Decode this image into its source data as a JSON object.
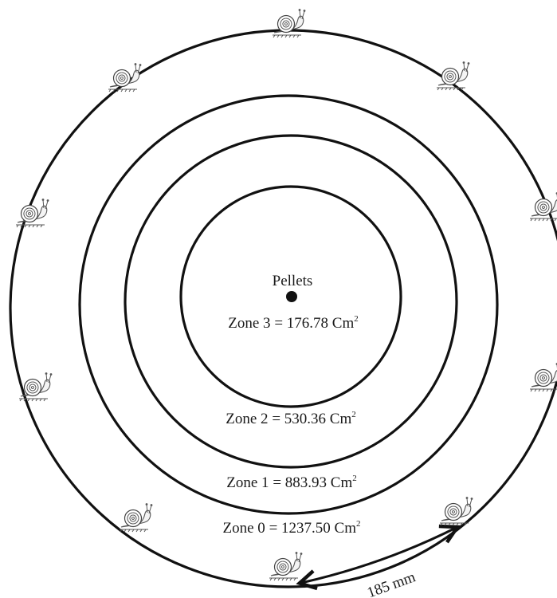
{
  "diagram": {
    "center_label": "Pellets",
    "zones": [
      {
        "name": "Zone 3",
        "area": "176.78",
        "unit": "Cm",
        "sup": "2"
      },
      {
        "name": "Zone 2",
        "area": "530.36",
        "unit": "Cm",
        "sup": "2"
      },
      {
        "name": "Zone 1",
        "area": "883.93",
        "unit": "Cm",
        "sup": "2"
      },
      {
        "name": "Zone 0",
        "area": "1237.50",
        "unit": "Cm",
        "sup": "2"
      }
    ],
    "distance_label": "185 mm",
    "snail_count": 10,
    "snail_icon": "snail-icon",
    "colors": {
      "ink": "#111111",
      "background": "#ffffff"
    }
  }
}
